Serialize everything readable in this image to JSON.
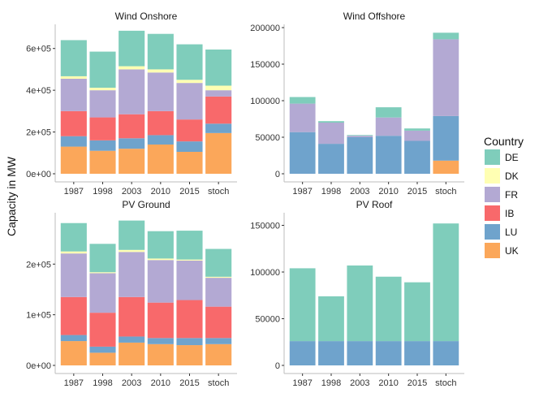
{
  "ylabel": "Capacity in MW",
  "legend": {
    "title": "Country",
    "items": [
      {
        "name": "DE",
        "color": "#7fcdbb"
      },
      {
        "name": "DK",
        "color": "#ffffb3"
      },
      {
        "name": "FR",
        "color": "#b3a9d3"
      },
      {
        "name": "IB",
        "color": "#f8696b"
      },
      {
        "name": "LU",
        "color": "#6fa3cc"
      },
      {
        "name": "UK",
        "color": "#fba75a"
      }
    ]
  },
  "chart_data": [
    {
      "type": "bar",
      "stacked": true,
      "title": "Wind Onshore",
      "categories": [
        "1987",
        "1998",
        "2003",
        "2010",
        "2015",
        "stoch"
      ],
      "ylim": [
        0,
        700000
      ],
      "yticks": [
        0,
        200000,
        400000,
        600000
      ],
      "ytick_labels": [
        "0e+00",
        "2e+05",
        "4e+05",
        "6e+05"
      ],
      "series": [
        {
          "name": "UK",
          "values": [
            130000,
            110000,
            120000,
            140000,
            105000,
            195000
          ]
        },
        {
          "name": "LU",
          "values": [
            50000,
            50000,
            50000,
            45000,
            50000,
            45000
          ]
        },
        {
          "name": "IB",
          "values": [
            120000,
            110000,
            115000,
            115000,
            105000,
            130000
          ]
        },
        {
          "name": "FR",
          "values": [
            155000,
            130000,
            215000,
            185000,
            175000,
            30000
          ]
        },
        {
          "name": "DK",
          "values": [
            12000,
            12000,
            15000,
            15000,
            15000,
            22000
          ]
        },
        {
          "name": "DE",
          "values": [
            173000,
            173000,
            170000,
            170000,
            170000,
            173000
          ]
        }
      ]
    },
    {
      "type": "bar",
      "stacked": true,
      "title": "Wind Offshore",
      "categories": [
        "1987",
        "1998",
        "2003",
        "2010",
        "2015",
        "stoch"
      ],
      "ylim": [
        0,
        200000
      ],
      "yticks": [
        0,
        50000,
        100000,
        150000,
        200000
      ],
      "ytick_labels": [
        "0",
        "50000",
        "100000",
        "150000",
        "200000"
      ],
      "series": [
        {
          "name": "UK",
          "values": [
            0,
            0,
            0,
            0,
            0,
            18000
          ]
        },
        {
          "name": "LU",
          "values": [
            57000,
            41000,
            50000,
            52000,
            45000,
            61000
          ]
        },
        {
          "name": "IB",
          "values": [
            0,
            0,
            0,
            0,
            0,
            0
          ]
        },
        {
          "name": "FR",
          "values": [
            39000,
            29000,
            2000,
            25000,
            14000,
            105000
          ]
        },
        {
          "name": "DK",
          "values": [
            0,
            0,
            0,
            0,
            0,
            0
          ]
        },
        {
          "name": "DE",
          "values": [
            9000,
            2000,
            1000,
            14000,
            3000,
            9000
          ]
        }
      ]
    },
    {
      "type": "bar",
      "stacked": true,
      "title": "PV Ground",
      "categories": [
        "1987",
        "1998",
        "2003",
        "2010",
        "2015",
        "stoch"
      ],
      "ylim": [
        0,
        295000
      ],
      "yticks": [
        0,
        100000,
        200000
      ],
      "ytick_labels": [
        "0e+00",
        "1e+05",
        "2e+05"
      ],
      "series": [
        {
          "name": "UK",
          "values": [
            48000,
            25000,
            45000,
            42000,
            40000,
            42000
          ]
        },
        {
          "name": "LU",
          "values": [
            12000,
            12000,
            12000,
            12000,
            14000,
            12000
          ]
        },
        {
          "name": "IB",
          "values": [
            75000,
            67000,
            78000,
            70000,
            75000,
            62000
          ]
        },
        {
          "name": "FR",
          "values": [
            86000,
            78000,
            89000,
            84000,
            78000,
            57000
          ]
        },
        {
          "name": "DK",
          "values": [
            4000,
            2000,
            4000,
            3000,
            2000,
            2000
          ]
        },
        {
          "name": "DE",
          "values": [
            56000,
            56000,
            58000,
            54000,
            57000,
            55000
          ]
        }
      ]
    },
    {
      "type": "bar",
      "stacked": true,
      "title": "PV Roof",
      "categories": [
        "1987",
        "1998",
        "2003",
        "2010",
        "2015",
        "stoch"
      ],
      "ylim": [
        0,
        160000
      ],
      "yticks": [
        0,
        50000,
        100000,
        150000
      ],
      "ytick_labels": [
        "0",
        "50000",
        "100000",
        "150000"
      ],
      "series": [
        {
          "name": "UK",
          "values": [
            0,
            0,
            0,
            0,
            0,
            0
          ]
        },
        {
          "name": "LU",
          "values": [
            26000,
            26000,
            26000,
            26000,
            26000,
            26000
          ]
        },
        {
          "name": "IB",
          "values": [
            0,
            0,
            0,
            0,
            0,
            0
          ]
        },
        {
          "name": "FR",
          "values": [
            0,
            0,
            0,
            0,
            0,
            0
          ]
        },
        {
          "name": "DK",
          "values": [
            0,
            0,
            0,
            0,
            0,
            0
          ]
        },
        {
          "name": "DE",
          "values": [
            78000,
            48000,
            81000,
            69000,
            63000,
            126000
          ]
        }
      ]
    }
  ]
}
